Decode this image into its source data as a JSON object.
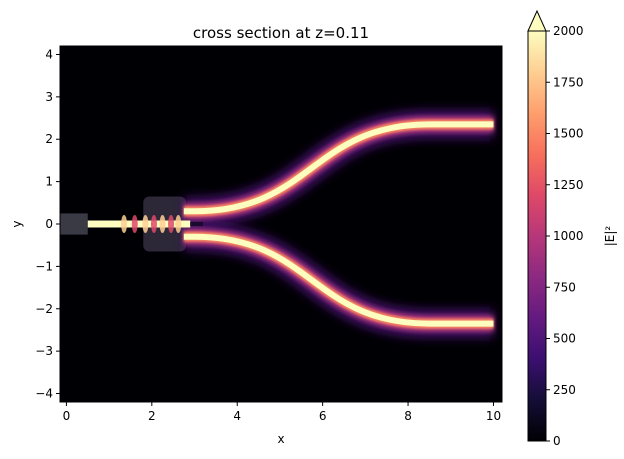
{
  "chart_data": {
    "type": "heatmap",
    "title": "cross section at z=0.11",
    "xlabel": "x",
    "ylabel": "y",
    "xlim": [
      -0.15,
      10.2
    ],
    "ylim": [
      -4.2,
      4.2
    ],
    "xticks": [
      0,
      2,
      4,
      6,
      8,
      10
    ],
    "yticks": [
      -4,
      -3,
      -2,
      -1,
      0,
      1,
      2,
      3,
      4
    ],
    "grid": false,
    "colormap": "magma",
    "colorbar": {
      "label": "|E|²",
      "range": [
        0,
        2000
      ],
      "ticks": [
        0,
        250,
        500,
        750,
        1000,
        1250,
        1500,
        1750,
        2000
      ],
      "extend": "max"
    },
    "structure": {
      "input_waveguide": {
        "x": [
          -0.15,
          0.5
        ],
        "y": 0,
        "width": 0.5
      },
      "mmi_region": {
        "x": [
          1.8,
          2.8
        ],
        "width": 1.3
      },
      "output_arms": [
        {
          "y_start": 0.3,
          "y_end": 2.35,
          "x_bend": [
            3.0,
            8.5
          ],
          "x_end": 10.0
        },
        {
          "y_start": -0.3,
          "y_end": -2.35,
          "x_bend": [
            3.0,
            8.5
          ],
          "x_end": 10.0
        }
      ],
      "field_intensity_max": 2000
    }
  }
}
